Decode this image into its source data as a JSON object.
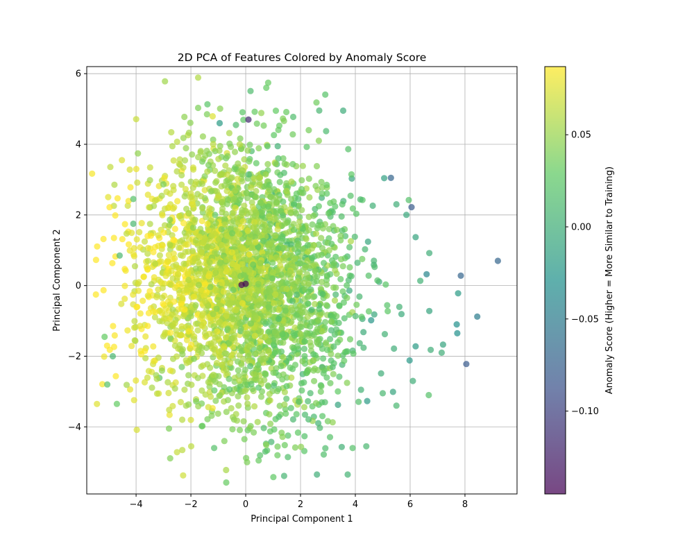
{
  "chart_data": {
    "type": "scatter",
    "title": "2D PCA of Features Colored by Anomaly Score",
    "xlabel": "Principal Component 1",
    "ylabel": "Principal Component 2",
    "xlim": [
      -5.8,
      9.9
    ],
    "ylim": [
      -5.9,
      6.2
    ],
    "xticks": [
      -4,
      -2,
      0,
      2,
      4,
      6,
      8
    ],
    "yticks": [
      -4,
      -2,
      0,
      2,
      4,
      6
    ],
    "xtick_labels": [
      "−4",
      "−2",
      "0",
      "2",
      "4",
      "6",
      "8"
    ],
    "ytick_labels": [
      "−4",
      "−2",
      "0",
      "2",
      "4",
      "6"
    ],
    "grid": true,
    "colormap": "viridis",
    "marker_alpha": 0.7,
    "colorbar": {
      "label": "Anomaly Score (Higher = More Similar to Training)",
      "range": [
        -0.145,
        0.087
      ],
      "ticks": [
        0.05,
        0.0,
        -0.05,
        -0.1
      ],
      "tick_labels": [
        "0.05",
        "0.00",
        "−0.05",
        "−0.10"
      ]
    },
    "n_points": 3000,
    "points": [
      [
        9.2,
        0.7,
        -0.07
      ],
      [
        8.45,
        -0.88,
        -0.05
      ],
      [
        8.05,
        -2.22,
        -0.08
      ],
      [
        7.85,
        0.28,
        -0.07
      ],
      [
        7.75,
        -0.22,
        -0.02
      ],
      [
        7.72,
        -1.35,
        -0.03
      ],
      [
        7.7,
        -1.1,
        -0.03
      ],
      [
        7.2,
        -1.67,
        -0.01
      ],
      [
        7.15,
        -1.9,
        0.0
      ],
      [
        6.75,
        -1.82,
        0.0
      ],
      [
        6.7,
        -0.72,
        -0.01
      ],
      [
        6.7,
        0.92,
        0.0
      ],
      [
        6.6,
        0.32,
        -0.04
      ],
      [
        6.68,
        -3.1,
        0.02
      ],
      [
        6.2,
        -1.72,
        -0.02
      ],
      [
        6.2,
        1.37,
        -0.01
      ],
      [
        6.05,
        2.22,
        -0.08
      ],
      [
        6.1,
        -2.7,
        0.0
      ],
      [
        5.95,
        2.42,
        0.02
      ],
      [
        5.3,
        3.05,
        -0.07
      ],
      [
        5.5,
        -3.4,
        0.01
      ],
      [
        5.5,
        2.3,
        0.0
      ],
      [
        5.0,
        -3.05,
        0.01
      ],
      [
        2.6,
        -5.35,
        0.0
      ],
      [
        0.75,
        5.6,
        0.03
      ],
      [
        1.1,
        4.95,
        0.03
      ],
      [
        0.1,
        4.7,
        -0.12
      ],
      [
        -0.95,
        4.6,
        -0.02
      ],
      [
        -4.7,
        -3.35,
        0.03
      ],
      [
        -5.15,
        -1.45,
        0.03
      ],
      [
        -5.05,
        -2.8,
        0.02
      ],
      [
        -4.85,
        -2.0,
        0.01
      ],
      [
        0.05,
        -5.0,
        0.04
      ],
      [
        -1.15,
        -4.6,
        0.02
      ],
      [
        4.4,
        -4.55,
        0.01
      ],
      [
        3.9,
        -4.6,
        0.02
      ],
      [
        -2.8,
        -4.05,
        0.04
      ],
      [
        -4.1,
        2.45,
        0.02
      ],
      [
        -4.1,
        1.75,
        0.01
      ],
      [
        -4.6,
        0.85,
        0.01
      ],
      [
        -0.15,
        0.02,
        -0.145
      ],
      [
        0.0,
        0.05,
        -0.14
      ]
    ]
  }
}
